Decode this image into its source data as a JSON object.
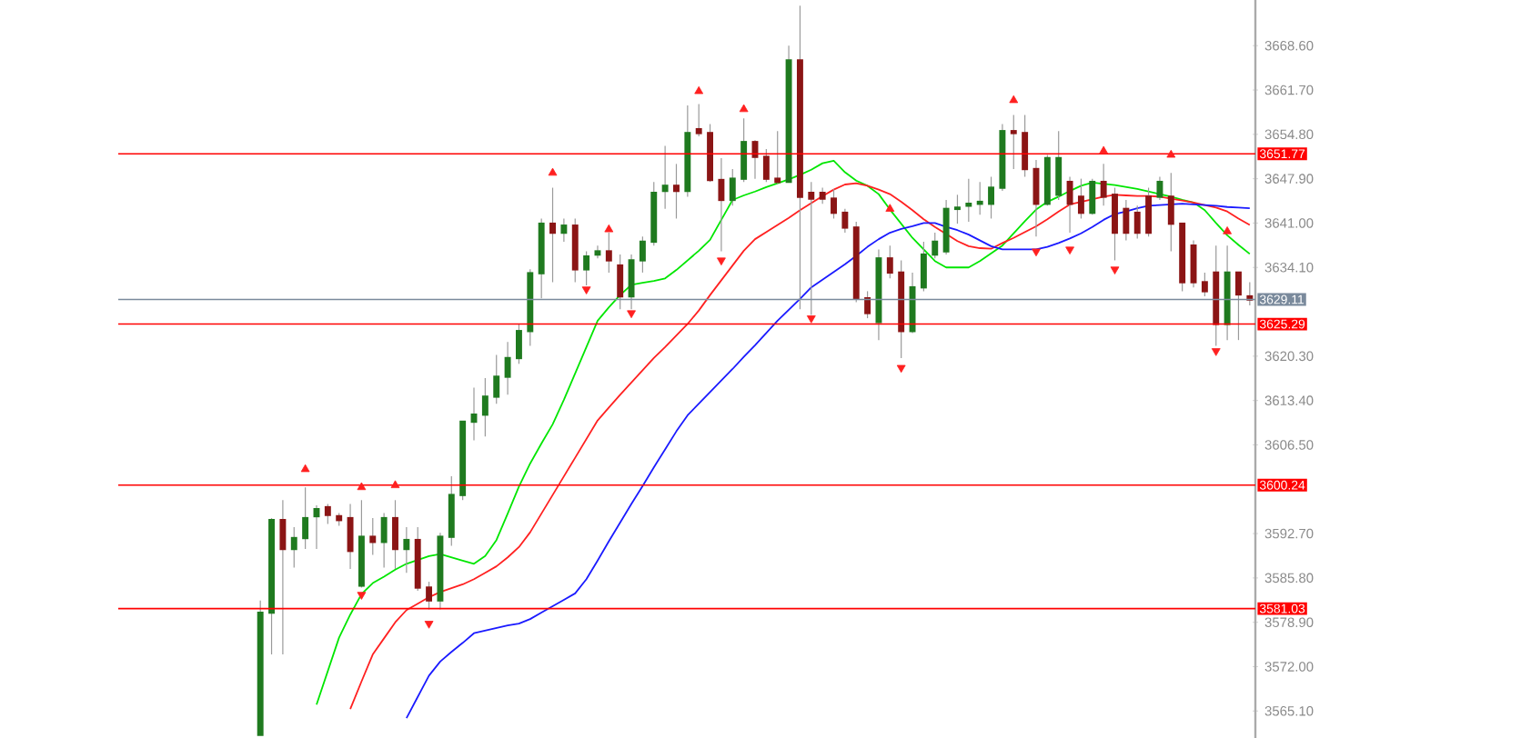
{
  "chart_data": {
    "type": "candlestick",
    "tick_labels": "y",
    "grid": false,
    "categories": [
      null,
      null,
      null,
      null,
      null,
      null,
      null,
      null,
      null,
      null,
      null,
      null,
      null,
      null,
      null,
      null,
      null,
      null,
      null,
      null,
      null,
      null,
      null,
      null,
      null,
      null,
      null,
      null,
      null,
      null,
      null,
      null,
      null,
      null,
      null,
      null,
      null,
      null,
      null,
      null,
      null,
      null,
      null,
      null,
      null,
      null,
      null,
      null,
      null,
      null,
      null,
      null,
      null,
      null,
      null,
      null,
      null,
      null,
      null,
      null,
      null,
      null,
      null,
      null,
      null,
      null,
      null,
      null,
      null,
      null,
      null,
      null,
      null,
      null,
      null,
      null,
      null,
      null,
      null,
      null,
      null,
      null,
      null,
      null,
      null,
      null,
      null,
      null,
      null
    ],
    "ohlc": [
      [
        3561.4,
        3582.3,
        3561.4,
        3580.4
      ],
      [
        3580.4,
        3595.1,
        3573.9,
        3594.8
      ],
      [
        3594.8,
        3597.9,
        3573.9,
        3590.3
      ],
      [
        3590.3,
        3593.7,
        3587.4,
        3592.0
      ],
      [
        3592.0,
        3599.9,
        3590.3,
        3595.1
      ],
      [
        3595.4,
        3597.1,
        3590.3,
        3596.5
      ],
      [
        3596.8,
        3597.3,
        3594.2,
        3595.6
      ],
      [
        3595.4,
        3595.9,
        3593.9,
        3594.8
      ],
      [
        3595.1,
        3597.3,
        3587.2,
        3590.0
      ],
      [
        3584.6,
        3597.9,
        3584.3,
        3592.2
      ],
      [
        3592.2,
        3595.1,
        3589.4,
        3591.4
      ],
      [
        3591.4,
        3595.9,
        3587.4,
        3595.1
      ],
      [
        3595.1,
        3597.9,
        3587.2,
        3590.3
      ],
      [
        3590.3,
        3593.7,
        3586.6,
        3591.7
      ],
      [
        3591.7,
        3593.7,
        3583.8,
        3584.3
      ],
      [
        3584.3,
        3585.2,
        3580.9,
        3582.3
      ],
      [
        3582.3,
        3592.8,
        3580.9,
        3592.2
      ],
      [
        3592.2,
        3601.6,
        3590.8,
        3598.7
      ],
      [
        3598.7,
        3610.1,
        3597.9,
        3610.1
      ],
      [
        3610.1,
        3615.4,
        3607.2,
        3611.2
      ],
      [
        3611.2,
        3616.9,
        3607.8,
        3614.0
      ],
      [
        3614.0,
        3620.5,
        3612.9,
        3617.1
      ],
      [
        3617.1,
        3622.5,
        3614.3,
        3620.0
      ],
      [
        3620.0,
        3625.3,
        3619.1,
        3624.2
      ],
      [
        3624.2,
        3633.8,
        3621.9,
        3633.2
      ],
      [
        3633.2,
        3641.7,
        3629.3,
        3640.9
      ],
      [
        3640.9,
        3646.5,
        3631.8,
        3639.5
      ],
      [
        3639.5,
        3641.7,
        3638.1,
        3640.6
      ],
      [
        3640.6,
        3641.7,
        3631.8,
        3633.8
      ],
      [
        3633.8,
        3636.6,
        3631.3,
        3635.8
      ],
      [
        3636.1,
        3637.5,
        3635.5,
        3636.6
      ],
      [
        3636.6,
        3639.5,
        3633.3,
        3635.2
      ],
      [
        3634.4,
        3636.1,
        3627.6,
        3629.6
      ],
      [
        3629.6,
        3636.1,
        3627.6,
        3635.2
      ],
      [
        3635.2,
        3638.9,
        3633.3,
        3638.1
      ],
      [
        3638.1,
        3647.4,
        3637.5,
        3645.7
      ],
      [
        3646.0,
        3653.0,
        3643.2,
        3646.8
      ],
      [
        3646.8,
        3650.2,
        3641.7,
        3646.0
      ],
      [
        3646.0,
        3659.3,
        3645.1,
        3655.0
      ],
      [
        3655.6,
        3659.5,
        3654.5,
        3655.0
      ],
      [
        3655.0,
        3656.4,
        3647.4,
        3647.7
      ],
      [
        3647.7,
        3651.1,
        3636.6,
        3644.6
      ],
      [
        3644.6,
        3649.4,
        3643.7,
        3647.9
      ],
      [
        3647.9,
        3657.3,
        3647.4,
        3653.6
      ],
      [
        3653.6,
        3653.9,
        3647.9,
        3651.3
      ],
      [
        3651.3,
        3652.5,
        3647.4,
        3647.9
      ],
      [
        3647.9,
        3655.3,
        3647.1,
        3647.4
      ],
      [
        3647.4,
        3668.6,
        3647.4,
        3666.3
      ],
      [
        3666.3,
        3674.8,
        3627.6,
        3645.1
      ],
      [
        3645.7,
        3647.4,
        3626.7,
        3644.8
      ],
      [
        3645.7,
        3646.5,
        3644.0,
        3644.8
      ],
      [
        3644.8,
        3646.3,
        3641.7,
        3642.6
      ],
      [
        3642.6,
        3643.2,
        3639.5,
        3640.3
      ],
      [
        3640.3,
        3641.2,
        3628.7,
        3629.3
      ],
      [
        3629.3,
        3630.4,
        3626.2,
        3627.0
      ],
      [
        3625.6,
        3636.9,
        3622.8,
        3635.5
      ],
      [
        3635.5,
        3637.5,
        3632.4,
        3633.3
      ],
      [
        3633.3,
        3635.2,
        3620.0,
        3624.2
      ],
      [
        3624.2,
        3633.3,
        3623.9,
        3631.0
      ],
      [
        3631.0,
        3638.1,
        3630.4,
        3636.1
      ],
      [
        3636.1,
        3639.5,
        3635.5,
        3638.1
      ],
      [
        3636.6,
        3644.6,
        3636.1,
        3643.2
      ],
      [
        3643.2,
        3645.4,
        3640.9,
        3643.4
      ],
      [
        3643.7,
        3647.9,
        3641.2,
        3644.0
      ],
      [
        3644.0,
        3647.4,
        3642.3,
        3644.3
      ],
      [
        3644.0,
        3648.2,
        3641.7,
        3646.5
      ],
      [
        3646.5,
        3656.4,
        3646.0,
        3655.3
      ],
      [
        3655.3,
        3657.8,
        3649.4,
        3655.0
      ],
      [
        3655.0,
        3657.8,
        3648.2,
        3649.4
      ],
      [
        3649.4,
        3650.8,
        3638.9,
        3644.0
      ],
      [
        3644.0,
        3651.6,
        3643.7,
        3651.1
      ],
      [
        3645.4,
        3655.3,
        3644.6,
        3651.1
      ],
      [
        3647.4,
        3648.2,
        3639.5,
        3644.0
      ],
      [
        3645.1,
        3647.9,
        3641.7,
        3642.6
      ],
      [
        3642.6,
        3647.9,
        3642.3,
        3647.4
      ],
      [
        3647.4,
        3650.2,
        3643.7,
        3645.1
      ],
      [
        3645.4,
        3646.5,
        3635.2,
        3639.5
      ],
      [
        3643.2,
        3644.6,
        3638.3,
        3639.5
      ],
      [
        3642.6,
        3643.7,
        3638.6,
        3639.5
      ],
      [
        3645.1,
        3646.5,
        3638.9,
        3639.5
      ],
      [
        3645.1,
        3648.2,
        3644.6,
        3647.4
      ],
      [
        3645.1,
        3648.8,
        3636.6,
        3640.9
      ],
      [
        3640.9,
        3640.9,
        3630.4,
        3631.8
      ],
      [
        3637.5,
        3638.3,
        3631.0,
        3631.8
      ],
      [
        3631.8,
        3633.3,
        3629.6,
        3630.4
      ],
      [
        3633.3,
        3637.5,
        3621.9,
        3625.3
      ],
      [
        3625.3,
        3637.5,
        3622.8,
        3633.3
      ],
      [
        3633.3,
        3633.3,
        3622.8,
        3629.9
      ],
      [
        3629.6,
        3631.8,
        3628.2,
        3629.1
      ]
    ],
    "series": [
      {
        "type": "line",
        "color": "#00e600",
        "values": [
          null,
          null,
          null,
          null,
          null,
          3566.1,
          3571.3,
          3576.5,
          3580.1,
          3583.3,
          3585.0,
          3586.0,
          3587.1,
          3588.0,
          3588.6,
          3589.2,
          3589.5,
          3589.0,
          3588.5,
          3588.0,
          3589.2,
          3591.7,
          3595.8,
          3600.0,
          3603.6,
          3606.7,
          3609.7,
          3613.5,
          3617.6,
          3621.7,
          3625.8,
          3627.9,
          3629.8,
          3631.4,
          3631.7,
          3632.0,
          3632.4,
          3633.7,
          3635.2,
          3636.7,
          3638.4,
          3641.5,
          3644.6,
          3645.3,
          3645.9,
          3646.6,
          3647.2,
          3647.8,
          3648.5,
          3649.3,
          3650.3,
          3650.7,
          3648.9,
          3647.6,
          3646.8,
          3645.5,
          3643.1,
          3640.9,
          3638.7,
          3636.9,
          3635.1,
          3634.1,
          3634.1,
          3634.1,
          3635.1,
          3636.3,
          3637.5,
          3639.4,
          3641.3,
          3643.1,
          3644.3,
          3645.1,
          3646.0,
          3646.8,
          3647.3,
          3647.1,
          3646.9,
          3646.6,
          3646.3,
          3645.9,
          3645.5,
          3645.1,
          3644.6,
          3644.2,
          3643.0,
          3641.0,
          3639.1,
          3637.6,
          3636.2
        ]
      },
      {
        "type": "line",
        "color": "#ff2020",
        "values": [
          null,
          null,
          null,
          null,
          null,
          null,
          null,
          null,
          3565.4,
          3569.7,
          3573.9,
          3576.4,
          3578.9,
          3580.8,
          3581.8,
          3582.8,
          3583.6,
          3584.2,
          3584.8,
          3585.6,
          3586.6,
          3587.6,
          3589.0,
          3590.6,
          3592.9,
          3595.8,
          3598.7,
          3601.6,
          3604.5,
          3607.4,
          3610.3,
          3612.3,
          3614.3,
          3616.2,
          3618.1,
          3620.0,
          3621.7,
          3623.5,
          3625.3,
          3627.4,
          3629.8,
          3632.1,
          3634.4,
          3636.7,
          3638.5,
          3639.6,
          3640.7,
          3641.8,
          3643.0,
          3644.1,
          3645.2,
          3646.2,
          3647.0,
          3647.2,
          3646.8,
          3646.2,
          3645.5,
          3644.3,
          3643.0,
          3641.6,
          3640.4,
          3639.3,
          3638.2,
          3637.4,
          3637.1,
          3637.0,
          3637.9,
          3638.7,
          3639.6,
          3640.5,
          3641.6,
          3642.8,
          3643.9,
          3644.3,
          3644.7,
          3645.1,
          3645.4,
          3645.3,
          3645.2,
          3645.2,
          3645.1,
          3644.8,
          3644.5,
          3644.2,
          3643.8,
          3643.4,
          3642.8,
          3641.7,
          3640.7
        ]
      },
      {
        "type": "line",
        "color": "#1a1aff",
        "values": [
          null,
          null,
          null,
          null,
          null,
          null,
          null,
          null,
          null,
          null,
          null,
          null,
          null,
          3564.0,
          3567.3,
          3570.6,
          3572.8,
          3574.3,
          3575.7,
          3577.2,
          3577.6,
          3578.0,
          3578.4,
          3578.7,
          3579.4,
          3580.4,
          3581.4,
          3582.4,
          3583.4,
          3585.6,
          3588.5,
          3591.5,
          3594.4,
          3597.3,
          3600.1,
          3603.0,
          3605.8,
          3608.6,
          3611.1,
          3612.9,
          3614.7,
          3616.5,
          3618.3,
          3620.2,
          3622.0,
          3623.9,
          3625.8,
          3627.5,
          3629.2,
          3631.0,
          3632.2,
          3633.4,
          3634.6,
          3635.9,
          3637.3,
          3638.5,
          3639.5,
          3640.1,
          3640.5,
          3641.0,
          3641.0,
          3640.4,
          3639.9,
          3639.2,
          3638.3,
          3637.4,
          3636.9,
          3636.9,
          3636.9,
          3636.9,
          3637.3,
          3637.9,
          3638.6,
          3639.4,
          3640.4,
          3641.5,
          3642.4,
          3642.8,
          3643.3,
          3643.7,
          3643.8,
          3643.9,
          3644.0,
          3643.9,
          3643.8,
          3643.7,
          3643.5,
          3643.4,
          3643.3
        ]
      },
      {
        "type": "scatter",
        "color": "#ff2020",
        "marker": "triangle",
        "values": [
          null,
          null,
          null,
          null,
          3602.7,
          null,
          null,
          null,
          null,
          3599.9,
          null,
          null,
          3600.2,
          null,
          null,
          null,
          null,
          null,
          null,
          null,
          null,
          null,
          null,
          null,
          null,
          null,
          3648.8,
          null,
          null,
          null,
          null,
          3640.0,
          null,
          null,
          null,
          null,
          null,
          null,
          null,
          3661.5,
          null,
          null,
          null,
          3658.7,
          null,
          null,
          null,
          null,
          null,
          null,
          null,
          null,
          null,
          null,
          null,
          null,
          3643.2,
          null,
          null,
          null,
          null,
          null,
          null,
          null,
          null,
          null,
          null,
          3660.1,
          null,
          null,
          null,
          null,
          null,
          null,
          null,
          3652.2,
          null,
          null,
          null,
          null,
          null,
          3651.6,
          null,
          null,
          null,
          null,
          3639.7,
          null,
          null
        ]
      },
      {
        "type": "scatter",
        "color": "#ff2020",
        "marker": "triangle",
        "values": [
          null,
          null,
          null,
          null,
          null,
          null,
          null,
          null,
          null,
          3583.2,
          null,
          null,
          null,
          null,
          null,
          3578.7,
          null,
          null,
          null,
          null,
          null,
          null,
          null,
          null,
          null,
          null,
          null,
          null,
          null,
          3630.7,
          null,
          null,
          null,
          3627.0,
          null,
          null,
          null,
          null,
          null,
          null,
          null,
          3635.2,
          null,
          null,
          null,
          null,
          null,
          null,
          null,
          3626.2,
          null,
          null,
          null,
          null,
          null,
          null,
          null,
          3618.5,
          null,
          null,
          null,
          null,
          null,
          null,
          null,
          null,
          null,
          null,
          null,
          3636.6,
          null,
          null,
          3636.9,
          null,
          null,
          null,
          3633.8,
          null,
          null,
          null,
          null,
          null,
          null,
          null,
          null,
          3621.1,
          null,
          null,
          null
        ]
      }
    ],
    "ylim": [
      3560.9,
      3675.7
    ],
    "yticks": [
      {
        "value": 3565.1,
        "label": "3565.10"
      },
      {
        "value": 3572.0,
        "label": "3572.00"
      },
      {
        "value": 3578.9,
        "label": "3578.90"
      },
      {
        "value": 3585.8,
        "label": "3585.80"
      },
      {
        "value": 3592.7,
        "label": "3592.70"
      },
      {
        "value": 3606.5,
        "label": "3606.50"
      },
      {
        "value": 3613.4,
        "label": "3613.40"
      },
      {
        "value": 3620.3,
        "label": "3620.30"
      },
      {
        "value": 3634.1,
        "label": "3634.10"
      },
      {
        "value": 3641.0,
        "label": "3641.00"
      },
      {
        "value": 3647.9,
        "label": "3647.90"
      },
      {
        "value": 3654.8,
        "label": "3654.80"
      },
      {
        "value": 3661.7,
        "label": "3661.70"
      },
      {
        "value": 3668.6,
        "label": "3668.60"
      }
    ],
    "ref_lines": [
      {
        "axis": "y",
        "value": 3651.77,
        "label": "3651.77",
        "color": "#ff0000"
      },
      {
        "axis": "y",
        "value": 3629.11,
        "label": "3629.11",
        "color": "#7a8a9c"
      },
      {
        "axis": "y",
        "value": 3625.29,
        "label": "3625.29",
        "color": "#ff0000"
      },
      {
        "axis": "y",
        "value": 3600.24,
        "label": "3600.24",
        "color": "#ff0000"
      },
      {
        "axis": "y",
        "value": 3581.03,
        "label": "3581.03",
        "color": "#ff0000"
      }
    ]
  }
}
